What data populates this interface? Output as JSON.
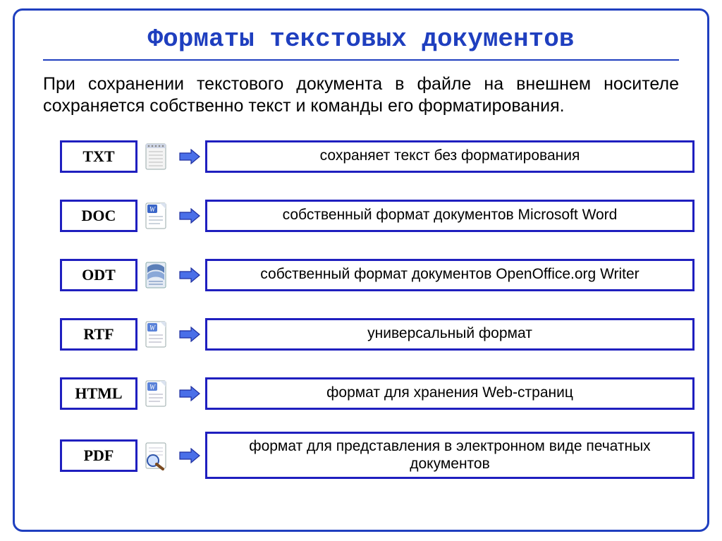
{
  "title": "Форматы текстовых документов",
  "intro": "При сохранении текстового документа в файле на внешнем носителе сохраняется собственно текст и команды его форматирования.",
  "colors": {
    "border": "#1f3fbf",
    "box_border": "#1f1fbf",
    "arrow_fill": "#4a6fe8",
    "arrow_stroke": "#1f2f9f",
    "text": "#000000",
    "background": "#ffffff"
  },
  "formats": [
    {
      "code": "TXT",
      "desc": "сохраняет текст без форматирования",
      "icon": "txt",
      "tall": false
    },
    {
      "code": "DOC",
      "desc": "собственный формат документов Microsoft Word",
      "icon": "doc",
      "tall": false
    },
    {
      "code": "ODT",
      "desc": "собственный формат документов OpenOffice.org Writer",
      "icon": "odt",
      "tall": false
    },
    {
      "code": "RTF",
      "desc": "универсальный формат",
      "icon": "rtf",
      "tall": false
    },
    {
      "code": "HTML",
      "desc": "формат для хранения Web-страниц",
      "icon": "html",
      "tall": false
    },
    {
      "code": "PDF",
      "desc": "формат для представления в электронном виде печатных документов",
      "icon": "pdf",
      "tall": true
    }
  ]
}
